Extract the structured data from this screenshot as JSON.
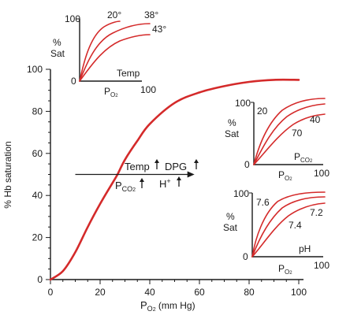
{
  "chart_data": [
    {
      "type": "line",
      "panel": "main",
      "xlabel_main": "P",
      "xlabel_sub": "O",
      "xlabel_sub2": "2",
      "xlabel_unit": " (mm Hg)",
      "ylabel": "% Hb saturation",
      "xlim": [
        0,
        100
      ],
      "ylim": [
        0,
        100
      ],
      "x_ticks": [
        "0",
        "20",
        "40",
        "60",
        "80",
        "100"
      ],
      "y_ticks": [
        "0",
        "20",
        "40",
        "60",
        "80",
        "100"
      ],
      "series": [
        {
          "color": "#d42a2a",
          "x": [
            0,
            5,
            10,
            15,
            20,
            25,
            27,
            30,
            35,
            40,
            50,
            60,
            70,
            80,
            90,
            100
          ],
          "y": [
            0,
            4,
            13,
            25,
            36,
            46,
            50,
            57,
            66,
            74,
            84,
            89,
            92,
            94,
            95,
            95
          ]
        }
      ],
      "annotation": {
        "shift_arrow": {
          "from": [
            10,
            50
          ],
          "to": [
            58,
            50
          ]
        },
        "temp": "Temp",
        "dpg": "DPG",
        "pco2_main": "P",
        "pco2_sub": "CO",
        "pco2_sub2": "2",
        "h": "H",
        "h_sup": "+"
      }
    },
    {
      "type": "line",
      "panel": "temperature-inset",
      "ylabel_line1": "%",
      "ylabel_line2": "Sat",
      "xlabel_main": "P",
      "xlabel_sub": "O",
      "xlabel_sub2": "2",
      "x_ticks": [
        "100"
      ],
      "y_ticks": [
        "0",
        "100"
      ],
      "axis_label": "Temp",
      "series": [
        {
          "name": "20°",
          "color": "#d42a2a"
        },
        {
          "name": "38°",
          "color": "#d42a2a"
        },
        {
          "name": "43°",
          "color": "#d42a2a"
        }
      ]
    },
    {
      "type": "line",
      "panel": "pco2-inset",
      "ylabel_line1": "%",
      "ylabel_line2": "Sat",
      "xlabel_main": "P",
      "xlabel_sub": "O",
      "xlabel_sub2": "2",
      "x_ticks": [
        "100"
      ],
      "y_ticks": [
        "0",
        "100"
      ],
      "axis_label_main": "P",
      "axis_label_sub": "CO",
      "axis_label_sub2": "2",
      "series": [
        {
          "name": "20",
          "color": "#d42a2a"
        },
        {
          "name": "40",
          "color": "#d42a2a"
        },
        {
          "name": "70",
          "color": "#d42a2a"
        }
      ]
    },
    {
      "type": "line",
      "panel": "ph-inset",
      "ylabel_line1": "%",
      "ylabel_line2": "Sat",
      "xlabel_main": "P",
      "xlabel_sub": "O",
      "xlabel_sub2": "2",
      "x_ticks": [
        "100"
      ],
      "y_ticks": [
        "0",
        "100"
      ],
      "axis_label": "pH",
      "series": [
        {
          "name": "7.6",
          "color": "#d42a2a"
        },
        {
          "name": "7.4",
          "color": "#d42a2a"
        },
        {
          "name": "7.2",
          "color": "#d42a2a"
        }
      ]
    }
  ]
}
